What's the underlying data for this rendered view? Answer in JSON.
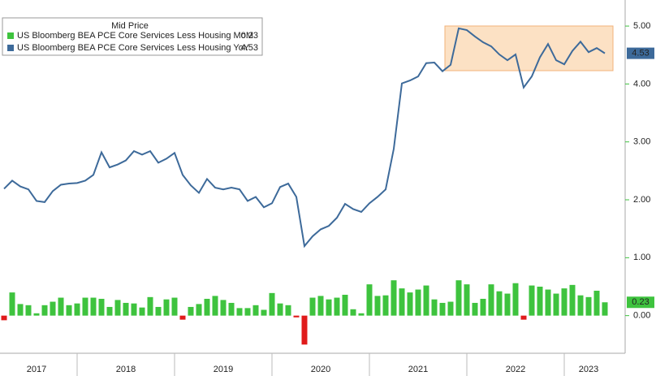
{
  "chart_data": {
    "type": "bar-line",
    "legend_title": "Mid Price",
    "categories": [
      null,
      null,
      null,
      null,
      "2017",
      null,
      null,
      null,
      null,
      null,
      null,
      null,
      null,
      null,
      null,
      "2018",
      null,
      null,
      null,
      null,
      null,
      null,
      null,
      null,
      null,
      null,
      null,
      "2019",
      null,
      null,
      null,
      null,
      null,
      null,
      null,
      null,
      null,
      null,
      null,
      "2020",
      null,
      null,
      null,
      null,
      null,
      null,
      null,
      null,
      null,
      null,
      null,
      "2021",
      null,
      null,
      null,
      null,
      null,
      null,
      null,
      null,
      null,
      null,
      null,
      "2022",
      null,
      null,
      null,
      null,
      null,
      null,
      null,
      null,
      "2023",
      null,
      null
    ],
    "series": [
      {
        "name": "US Bloomberg BEA PCE Core Services Less Housing MoM",
        "type": "bar",
        "color": "#3ec33e",
        "negative_color": "#e01b1b",
        "values": [
          -0.08,
          0.4,
          0.2,
          0.18,
          0.04,
          0.18,
          0.24,
          0.31,
          0.18,
          0.21,
          0.31,
          0.31,
          0.29,
          0.15,
          0.27,
          0.22,
          0.21,
          0.14,
          0.32,
          0.15,
          0.28,
          0.31,
          -0.07,
          0.15,
          0.2,
          0.29,
          0.34,
          0.27,
          0.22,
          0.13,
          0.13,
          0.18,
          0.1,
          0.39,
          0.21,
          0.18,
          -0.03,
          -0.5,
          0.31,
          0.34,
          0.28,
          0.31,
          0.36,
          0.11,
          0.04,
          0.54,
          0.34,
          0.35,
          0.61,
          0.47,
          0.4,
          0.45,
          0.52,
          0.28,
          0.22,
          0.24,
          0.61,
          0.54,
          0.22,
          0.29,
          0.54,
          0.42,
          0.38,
          0.56,
          -0.07,
          0.52,
          0.5,
          0.45,
          0.38,
          0.47,
          0.53,
          0.35,
          0.32,
          0.43,
          0.23
        ]
      },
      {
        "name": "US Bloomberg BEA PCE Core Services Less Housing YoY",
        "type": "line",
        "color": "#3d6a9a",
        "values": [
          2.19,
          2.33,
          2.23,
          2.18,
          1.98,
          1.96,
          2.15,
          2.26,
          2.28,
          2.29,
          2.33,
          2.43,
          2.82,
          2.56,
          2.61,
          2.68,
          2.84,
          2.78,
          2.84,
          2.64,
          2.71,
          2.81,
          2.43,
          2.25,
          2.12,
          2.36,
          2.21,
          2.18,
          2.21,
          2.18,
          1.98,
          2.05,
          1.87,
          1.94,
          2.22,
          2.28,
          2.05,
          1.2,
          1.37,
          1.49,
          1.55,
          1.69,
          1.93,
          1.84,
          1.79,
          1.94,
          2.05,
          2.18,
          2.88,
          4.01,
          4.06,
          4.13,
          4.36,
          4.37,
          4.22,
          4.33,
          4.96,
          4.93,
          4.82,
          4.72,
          4.65,
          4.51,
          4.41,
          4.51,
          3.94,
          4.13,
          4.46,
          4.69,
          4.41,
          4.34,
          4.57,
          4.73,
          4.55,
          4.62,
          4.53
        ]
      }
    ],
    "ylim": [
      -0.65,
      5.45
    ],
    "yticks": [
      {
        "value": 0,
        "label": "0.00"
      },
      {
        "value": 1,
        "label": "1.00"
      },
      {
        "value": 2,
        "label": "2.00"
      },
      {
        "value": 3,
        "label": "3.00"
      },
      {
        "value": 4,
        "label": "4.00"
      },
      {
        "value": 5,
        "label": "5.00"
      }
    ],
    "grid": false
  }
}
